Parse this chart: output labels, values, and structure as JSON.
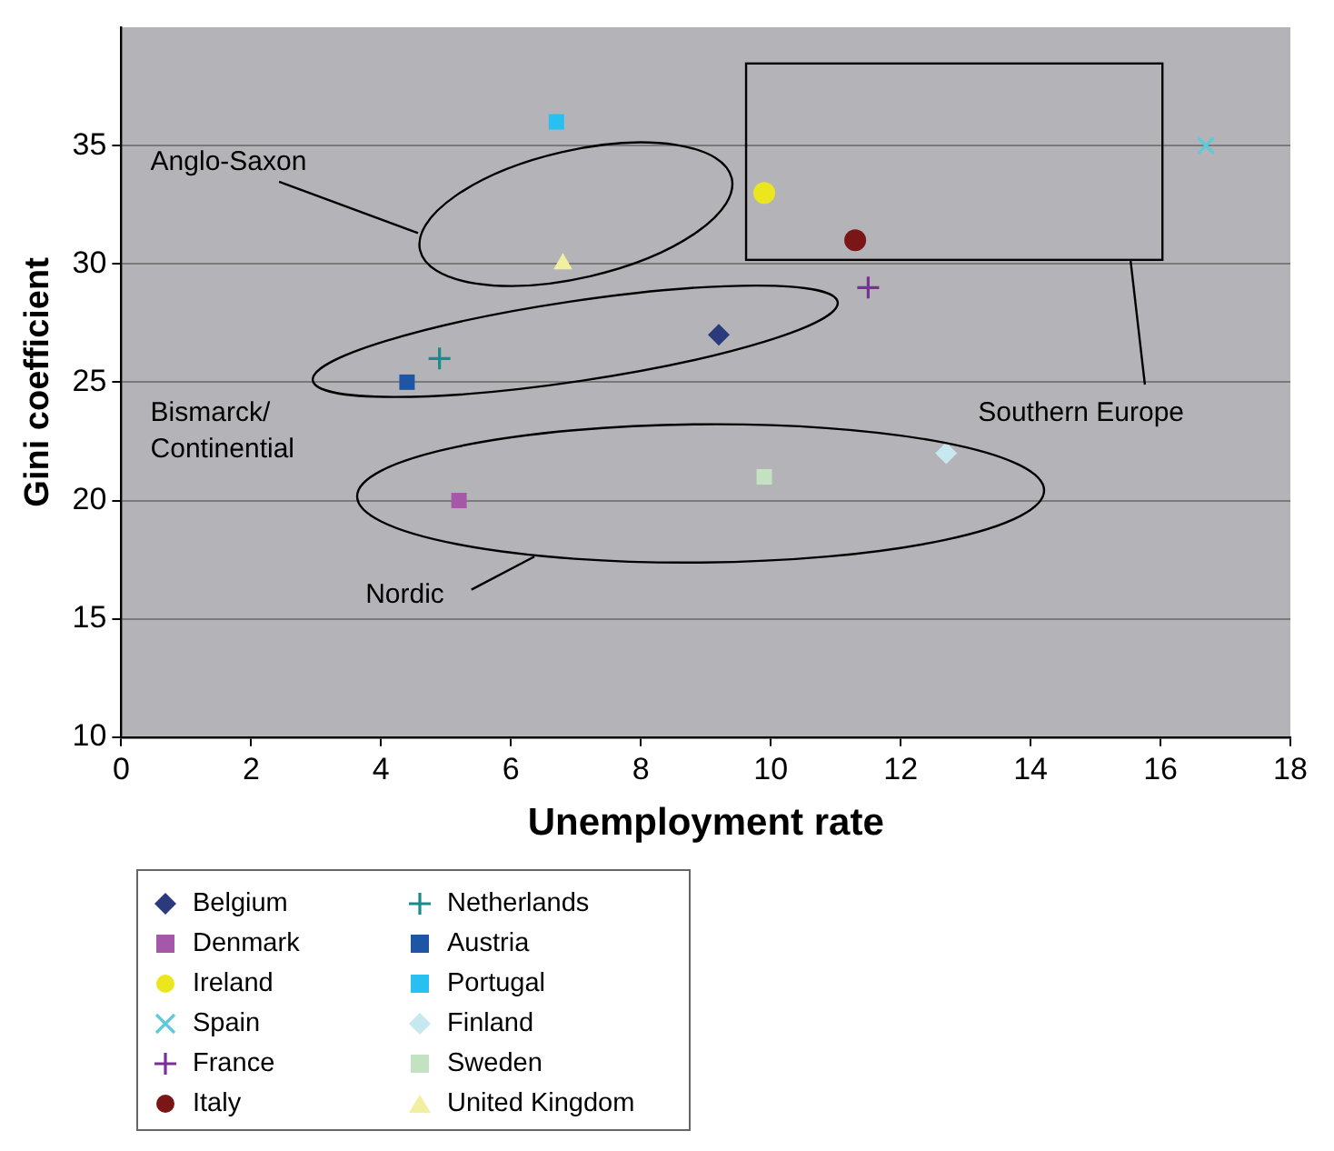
{
  "chart_data": {
    "type": "scatter",
    "xlabel": "Unemployment rate",
    "ylabel": "Gini coefficient",
    "xlim": [
      0,
      18
    ],
    "xticks": [
      0,
      2,
      4,
      6,
      8,
      10,
      12,
      14,
      16,
      18
    ],
    "ylim": [
      10,
      40
    ],
    "yticks": [
      10,
      15,
      20,
      25,
      30,
      35
    ],
    "grid": "y",
    "legend": "bottom left",
    "series": [
      {
        "name": "Belgium",
        "color": "#2b3a7c",
        "marker": "diamond",
        "x": [
          9.2
        ],
        "values": [
          27
        ]
      },
      {
        "name": "Denmark",
        "color": "#a558a8",
        "marker": "square",
        "x": [
          5.2
        ],
        "values": [
          20
        ]
      },
      {
        "name": "Ireland",
        "color": "#ece61e",
        "marker": "circle",
        "x": [
          9.9
        ],
        "values": [
          33
        ]
      },
      {
        "name": "Spain",
        "color": "#5ccad8",
        "marker": "x",
        "x": [
          16.7
        ],
        "values": [
          35
        ]
      },
      {
        "name": "France",
        "color": "#7a2f9a",
        "marker": "cross",
        "x": [
          11.5
        ],
        "values": [
          29
        ]
      },
      {
        "name": "Italy",
        "color": "#7a1616",
        "marker": "circle",
        "x": [
          11.3
        ],
        "values": [
          31
        ]
      },
      {
        "name": "Netherlands",
        "color": "#1a8a8a",
        "marker": "cross",
        "x": [
          4.9
        ],
        "values": [
          26
        ]
      },
      {
        "name": "Austria",
        "color": "#1f55a5",
        "marker": "square",
        "x": [
          4.4
        ],
        "values": [
          25
        ]
      },
      {
        "name": "Portugal",
        "color": "#28c0f0",
        "marker": "square",
        "x": [
          6.7
        ],
        "values": [
          36
        ]
      },
      {
        "name": "Finland",
        "color": "#c8e8f0",
        "marker": "diamond",
        "x": [
          12.7
        ],
        "values": [
          22
        ]
      },
      {
        "name": "Sweden",
        "color": "#c2e2c2",
        "marker": "square",
        "x": [
          9.9
        ],
        "values": [
          21
        ]
      },
      {
        "name": "United Kingdom",
        "color": "#f2f0a0",
        "marker": "triangle",
        "x": [
          6.8
        ],
        "values": [
          30
        ]
      }
    ],
    "annotations": [
      "Anglo-Saxon",
      "Bismarck/\nContinential",
      "Nordic",
      "Southern Europe"
    ]
  }
}
